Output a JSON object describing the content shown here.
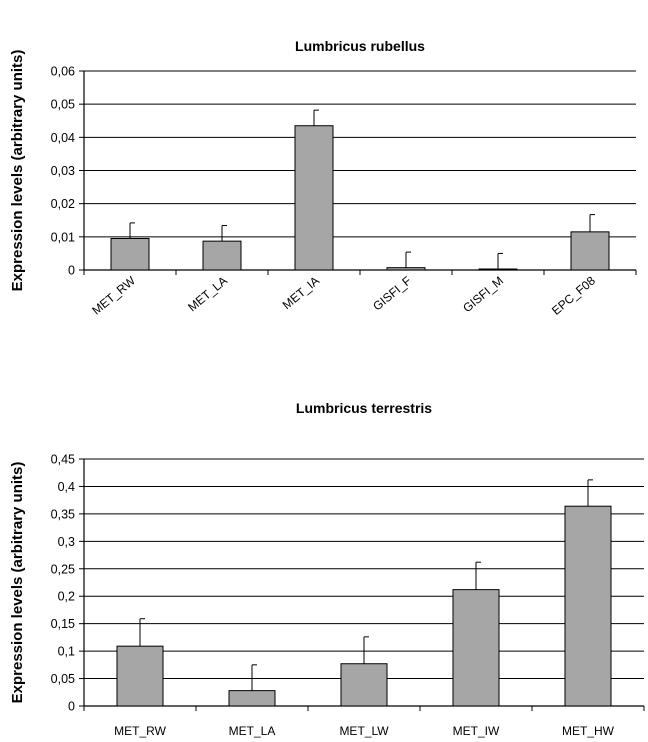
{
  "chart_data": [
    {
      "type": "bar",
      "title": "Lumbricus rubellus",
      "ylabel": "Expression levels (arbitrary units)",
      "xlabel": "",
      "categories": [
        "MET_RW",
        "MET_LA",
        "MET_IA",
        "GISFI_F",
        "GISFI_M",
        "EPC_F08"
      ],
      "values": [
        0.0095,
        0.0087,
        0.0435,
        0.0007,
        0.0003,
        0.0115
      ],
      "error": [
        0.0047,
        0.0047,
        0.0047,
        0.0047,
        0.0047,
        0.0052
      ],
      "ylim": [
        0,
        0.06
      ],
      "yticks": [
        "0",
        "0,01",
        "0,02",
        "0,03",
        "0,04",
        "0,05",
        "0,06"
      ],
      "grid": true,
      "rotated_category_labels": true,
      "bar_color": "#a6a6a6"
    },
    {
      "type": "bar",
      "title": "Lumbricus terrestris",
      "ylabel": "Expression levels (arbitrary units)",
      "xlabel": "",
      "categories": [
        "MET_RW",
        "MET_LA",
        "MET_LW",
        "MET_IW",
        "MET_HW"
      ],
      "values": [
        0.109,
        0.028,
        0.077,
        0.212,
        0.364
      ],
      "error": [
        0.05,
        0.047,
        0.049,
        0.05,
        0.048
      ],
      "ylim": [
        0,
        0.45
      ],
      "yticks": [
        "0",
        "0,05",
        "0,1",
        "0,15",
        "0,2",
        "0,25",
        "0,3",
        "0,35",
        "0,4",
        "0,45"
      ],
      "grid": true,
      "rotated_category_labels": false,
      "bar_color": "#a6a6a6"
    }
  ]
}
